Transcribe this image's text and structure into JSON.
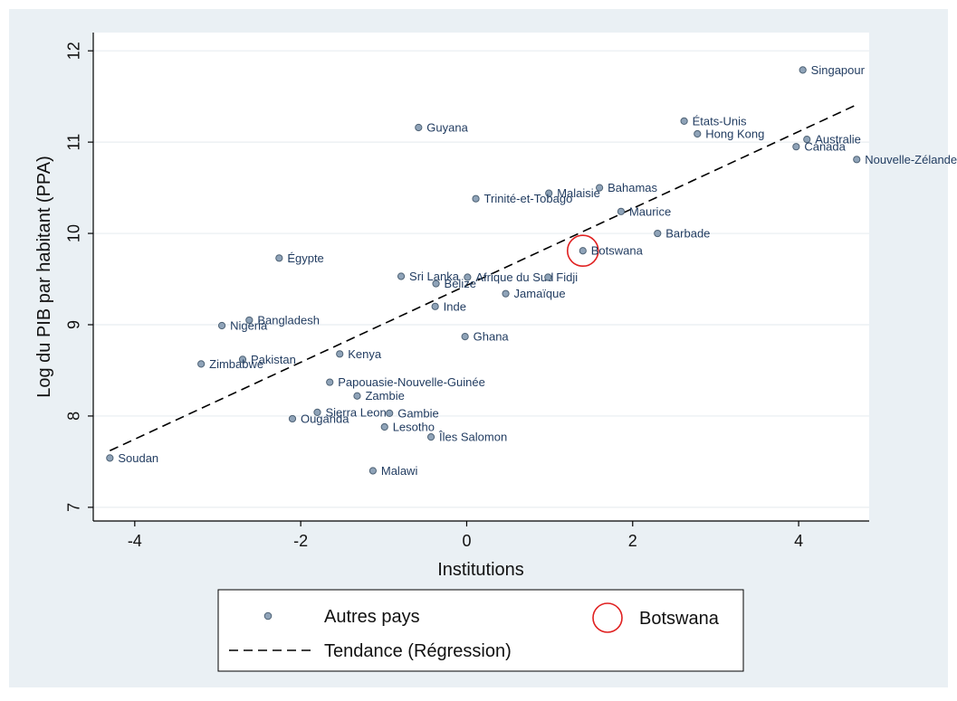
{
  "chart_data": {
    "type": "scatter",
    "xlabel": "Institutions",
    "ylabel": "Log du PIB par habitant (PPA)",
    "xlim": [
      -4.5,
      4.85
    ],
    "ylim": [
      6.85,
      12.2
    ],
    "xticks": [
      -4,
      -2,
      0,
      2,
      4
    ],
    "yticks": [
      7,
      8,
      9,
      10,
      11,
      12
    ],
    "xtick_labels": [
      "-4",
      "-2",
      "0",
      "2",
      "4"
    ],
    "ytick_labels": [
      "7",
      "8",
      "9",
      "10",
      "11",
      "12"
    ],
    "grid": "horizontal",
    "legend_position": "bottom",
    "colors": {
      "background": "#eaf0f4",
      "plot": "#ffffff",
      "point": "#8fa3b8",
      "point_edge": "#4e6275",
      "highlight": "#e02020",
      "trend": "#000000"
    },
    "trend": {
      "x": [
        -4.3,
        4.7
      ],
      "y": [
        7.62,
        11.41
      ]
    },
    "series": [
      {
        "name": "Autres pays",
        "points": [
          {
            "label": "Singapour",
            "x": 4.05,
            "y": 11.79
          },
          {
            "label": "États-Unis",
            "x": 2.62,
            "y": 11.23
          },
          {
            "label": "Hong Kong",
            "x": 2.78,
            "y": 11.09
          },
          {
            "label": "Australie",
            "x": 4.1,
            "y": 11.03
          },
          {
            "label": "Canada",
            "x": 3.97,
            "y": 10.95
          },
          {
            "label": "Nouvelle-Zélande",
            "x": 4.7,
            "y": 10.81
          },
          {
            "label": "Guyana",
            "x": -0.58,
            "y": 11.16
          },
          {
            "label": "Bahamas",
            "x": 1.6,
            "y": 10.5
          },
          {
            "label": "Malaisie",
            "x": 0.99,
            "y": 10.44
          },
          {
            "label": "Trinité-et-Tobago",
            "x": 0.11,
            "y": 10.38
          },
          {
            "label": "Maurice",
            "x": 1.86,
            "y": 10.24
          },
          {
            "label": "Barbade",
            "x": 2.3,
            "y": 10.0
          },
          {
            "label": "Égypte",
            "x": -2.26,
            "y": 9.73
          },
          {
            "label": "Sri Lanka",
            "x": -0.79,
            "y": 9.53
          },
          {
            "label": "Afrique du Sud",
            "x": 0.01,
            "y": 9.52
          },
          {
            "label": "Fidji",
            "x": 0.98,
            "y": 9.52
          },
          {
            "label": "Belize",
            "x": -0.37,
            "y": 9.45
          },
          {
            "label": "Jamaïque",
            "x": 0.47,
            "y": 9.34
          },
          {
            "label": "Inde",
            "x": -0.38,
            "y": 9.2
          },
          {
            "label": "Bangladesh",
            "x": -2.62,
            "y": 9.05
          },
          {
            "label": "Nigeria",
            "x": -2.95,
            "y": 8.99
          },
          {
            "label": "Ghana",
            "x": -0.02,
            "y": 8.87
          },
          {
            "label": "Kenya",
            "x": -1.53,
            "y": 8.68
          },
          {
            "label": "Pakistan",
            "x": -2.7,
            "y": 8.62
          },
          {
            "label": "Zimbabwe",
            "x": -3.2,
            "y": 8.57
          },
          {
            "label": "Papouasie-Nouvelle-Guinée",
            "x": -1.65,
            "y": 8.37
          },
          {
            "label": "Zambie",
            "x": -1.32,
            "y": 8.22
          },
          {
            "label": "Sierra Leone",
            "x": -1.8,
            "y": 8.04
          },
          {
            "label": "Gambie",
            "x": -0.93,
            "y": 8.03
          },
          {
            "label": "Ouganda",
            "x": -2.1,
            "y": 7.97
          },
          {
            "label": "Lesotho",
            "x": -0.99,
            "y": 7.88
          },
          {
            "label": "Îles Salomon",
            "x": -0.43,
            "y": 7.77
          },
          {
            "label": "Soudan",
            "x": -4.3,
            "y": 7.54
          },
          {
            "label": "Malawi",
            "x": -1.13,
            "y": 7.4
          }
        ]
      },
      {
        "name": "Botswana",
        "points": [
          {
            "label": "Botswana",
            "x": 1.4,
            "y": 9.81
          }
        ]
      }
    ],
    "legend": {
      "entries": [
        {
          "label": "Autres pays"
        },
        {
          "label": "Botswana"
        },
        {
          "label": "Tendance (Régression)"
        }
      ]
    }
  }
}
